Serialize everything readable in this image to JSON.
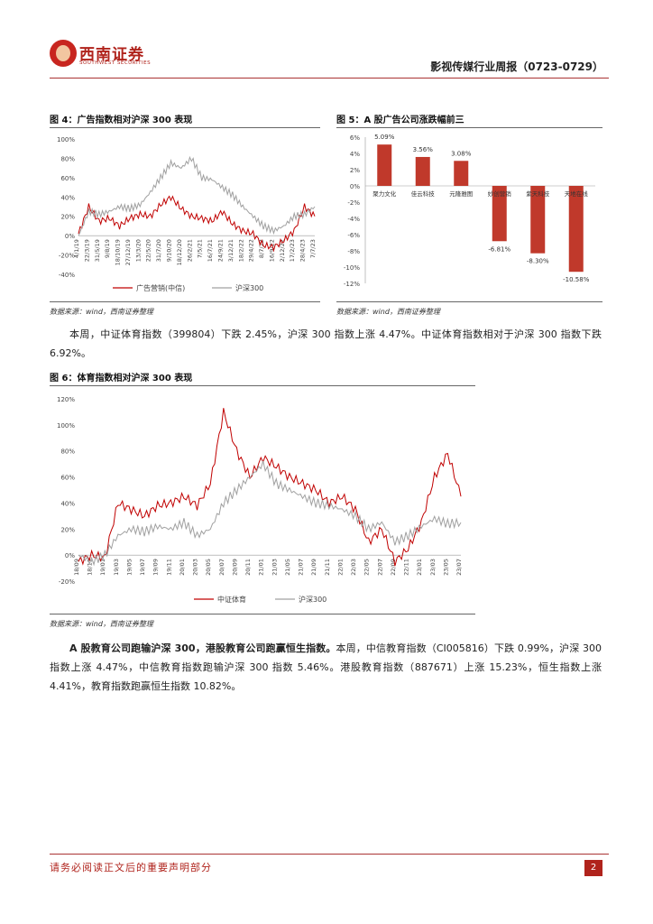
{
  "header": {
    "logo_cn": "西南证券",
    "logo_en": "SOUTHWEST SECURITIES",
    "report_title": "影视传媒行业周报（0723-0729）"
  },
  "figure4": {
    "title": "图 4：广告指数相对沪深 300 表现",
    "source": "数据来源：wind，西南证券整理",
    "chart_data": {
      "type": "line",
      "x": [
        "4/1/19",
        "22/3/19",
        "31/5/19",
        "9/8/19",
        "18/10/19",
        "27/12/19",
        "13/3/20",
        "22/5/20",
        "31/7/20",
        "9/10/20",
        "18/12/20",
        "26/2/21",
        "7/5/21",
        "16/7/21",
        "24/9/21",
        "3/12/21",
        "18/2/22",
        "29/4/22",
        "8/7/22",
        "16/9/22",
        "2/12/22",
        "17/2/23",
        "28/4/23",
        "7/7/23"
      ],
      "ylim": [
        -40,
        100
      ],
      "yticks": [
        "-40%",
        "-20%",
        "0%",
        "20%",
        "40%",
        "60%",
        "80%",
        "100%"
      ],
      "series": [
        {
          "name": "广告营销(中信)",
          "color": "#c00000",
          "values": [
            2,
            30,
            15,
            18,
            10,
            18,
            22,
            20,
            32,
            40,
            28,
            20,
            18,
            15,
            25,
            12,
            5,
            2,
            -10,
            -12,
            -5,
            5,
            30,
            20
          ]
        },
        {
          "name": "沪深300",
          "color": "#a0a0a0",
          "values": [
            0,
            25,
            22,
            25,
            30,
            28,
            32,
            45,
            60,
            75,
            70,
            80,
            60,
            58,
            50,
            42,
            30,
            20,
            10,
            5,
            10,
            20,
            22,
            30
          ]
        }
      ]
    }
  },
  "figure5": {
    "title": "图 5：A 股广告公司涨跌幅前三",
    "source": "数据来源：wind，西南证券整理",
    "chart_data": {
      "type": "bar",
      "categories": [
        "聚力文化",
        "佳云科技",
        "元隆雅图",
        "妙创营销",
        "紫天科技",
        "天地在线"
      ],
      "values": [
        5.09,
        3.56,
        3.08,
        -6.81,
        -8.3,
        -10.58
      ],
      "labels": [
        "5.09%",
        "3.56%",
        "3.08%",
        "-6.81%",
        "-8.30%",
        "-10.58%"
      ],
      "ylim": [
        -12,
        6
      ],
      "yticks": [
        "-12%",
        "-10%",
        "-8%",
        "-6%",
        "-4%",
        "-2%",
        "0%",
        "2%",
        "4%",
        "6%"
      ],
      "color": "#c0392b"
    }
  },
  "para1": "本周，中证体育指数（399804）下跌 2.45%，沪深 300 指数上涨 4.47%。中证体育指数相对于沪深 300 指数下跌 6.92%。",
  "figure6": {
    "title": "图 6：体育指数相对沪深 300 表现",
    "source": "数据来源：wind，西南证券整理",
    "chart_data": {
      "type": "line",
      "x": [
        "18/09",
        "18/11",
        "19/01",
        "19/03",
        "19/05",
        "19/07",
        "19/09",
        "19/11",
        "20/01",
        "20/03",
        "20/05",
        "20/07",
        "20/09",
        "20/11",
        "21/01",
        "21/03",
        "21/05",
        "21/07",
        "21/09",
        "21/11",
        "22/01",
        "22/03",
        "22/05",
        "22/07",
        "22/09",
        "22/11",
        "23/01",
        "23/03",
        "23/05",
        "23/07"
      ],
      "ylim": [
        -20,
        120
      ],
      "yticks": [
        "-20%",
        "0%",
        "20%",
        "40%",
        "60%",
        "80%",
        "100%",
        "120%"
      ],
      "series": [
        {
          "name": "中证体育",
          "color": "#c00000",
          "values": [
            -5,
            0,
            -2,
            40,
            35,
            30,
            38,
            40,
            45,
            38,
            55,
            110,
            80,
            60,
            75,
            68,
            60,
            55,
            50,
            40,
            45,
            35,
            10,
            20,
            -5,
            5,
            25,
            60,
            78,
            45
          ]
        },
        {
          "name": "沪深300",
          "color": "#a0a0a0",
          "values": [
            0,
            -5,
            0,
            15,
            20,
            18,
            22,
            20,
            25,
            15,
            20,
            40,
            50,
            60,
            70,
            55,
            50,
            45,
            40,
            38,
            35,
            30,
            20,
            25,
            10,
            15,
            22,
            28,
            24,
            25
          ]
        }
      ]
    }
  },
  "para2": {
    "lead": "A 股教育公司跑输沪深 300，港股教育公司跑赢恒生指数。",
    "text": "本周，中信教育指数（CI005816）下跌 0.99%，沪深 300 指数上涨 4.47%，中信教育指数跑输沪深 300 指数 5.46%。港股教育指数（887671）上涨 15.23%，恒生指数上涨 4.41%，教育指数跑赢恒生指数 10.82%。"
  },
  "footer": {
    "disclaimer": "请务必阅读正文后的重要声明部分",
    "page": "2"
  }
}
